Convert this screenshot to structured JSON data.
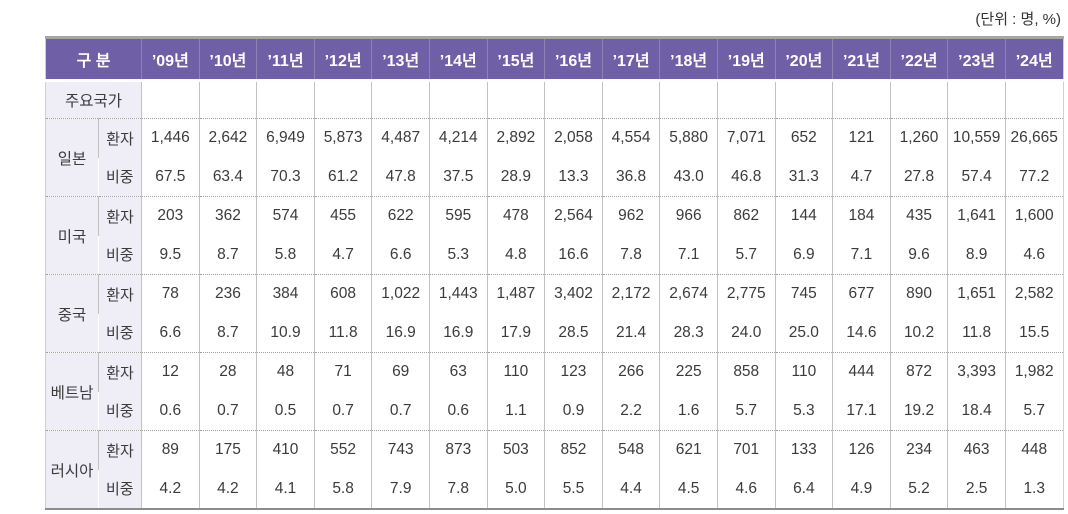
{
  "chart_data": {
    "type": "table",
    "unit_label": "(단위 : 명, %)",
    "header": {
      "category_label": "구 분",
      "years": [
        "’09년",
        "’10년",
        "’11년",
        "’12년",
        "’13년",
        "’14년",
        "’15년",
        "’16년",
        "’17년",
        "’18년",
        "’19년",
        "’20년",
        "’21년",
        "’22년",
        "’23년",
        "’24년"
      ]
    },
    "section_row_label": "주요국가",
    "metric_labels": {
      "patients": "환자",
      "share": "비중"
    },
    "countries": [
      {
        "name": "일본",
        "patients": [
          "1,446",
          "2,642",
          "6,949",
          "5,873",
          "4,487",
          "4,214",
          "2,892",
          "2,058",
          "4,554",
          "5,880",
          "7,071",
          "652",
          "121",
          "1,260",
          "10,559",
          "26,665"
        ],
        "share": [
          "67.5",
          "63.4",
          "70.3",
          "61.2",
          "47.8",
          "37.5",
          "28.9",
          "13.3",
          "36.8",
          "43.0",
          "46.8",
          "31.3",
          "4.7",
          "27.8",
          "57.4",
          "77.2"
        ]
      },
      {
        "name": "미국",
        "patients": [
          "203",
          "362",
          "574",
          "455",
          "622",
          "595",
          "478",
          "2,564",
          "962",
          "966",
          "862",
          "144",
          "184",
          "435",
          "1,641",
          "1,600"
        ],
        "share": [
          "9.5",
          "8.7",
          "5.8",
          "4.7",
          "6.6",
          "5.3",
          "4.8",
          "16.6",
          "7.8",
          "7.1",
          "5.7",
          "6.9",
          "7.1",
          "9.6",
          "8.9",
          "4.6"
        ]
      },
      {
        "name": "중국",
        "patients": [
          "78",
          "236",
          "384",
          "608",
          "1,022",
          "1,443",
          "1,487",
          "3,402",
          "2,172",
          "2,674",
          "2,775",
          "745",
          "677",
          "890",
          "1,651",
          "2,582"
        ],
        "share": [
          "6.6",
          "8.7",
          "10.9",
          "11.8",
          "16.9",
          "16.9",
          "17.9",
          "28.5",
          "21.4",
          "28.3",
          "24.0",
          "25.0",
          "14.6",
          "10.2",
          "11.8",
          "15.5"
        ]
      },
      {
        "name": "베트남",
        "patients": [
          "12",
          "28",
          "48",
          "71",
          "69",
          "63",
          "110",
          "123",
          "266",
          "225",
          "858",
          "110",
          "444",
          "872",
          "3,393",
          "1,982"
        ],
        "share": [
          "0.6",
          "0.7",
          "0.5",
          "0.7",
          "0.7",
          "0.6",
          "1.1",
          "0.9",
          "2.2",
          "1.6",
          "5.7",
          "5.3",
          "17.1",
          "19.2",
          "18.4",
          "5.7"
        ]
      },
      {
        "name": "러시아",
        "patients": [
          "89",
          "175",
          "410",
          "552",
          "743",
          "873",
          "503",
          "852",
          "548",
          "621",
          "701",
          "133",
          "126",
          "234",
          "463",
          "448"
        ],
        "share": [
          "4.2",
          "4.2",
          "4.1",
          "5.8",
          "7.9",
          "7.8",
          "5.0",
          "5.5",
          "4.4",
          "4.5",
          "4.6",
          "6.4",
          "4.9",
          "5.2",
          "2.5",
          "1.3"
        ]
      }
    ]
  },
  "colors": {
    "header_bg": "#6e5fa7",
    "header_text": "#ffffff",
    "label_bg": "#efedf6",
    "body_text": "#3b3b3b",
    "grid_line": "#c2c2c2",
    "group_divider_dotted": "#9f9f9f",
    "table_top_border": "#a6a6a6",
    "table_bottom_border": "#8c8c8c"
  }
}
